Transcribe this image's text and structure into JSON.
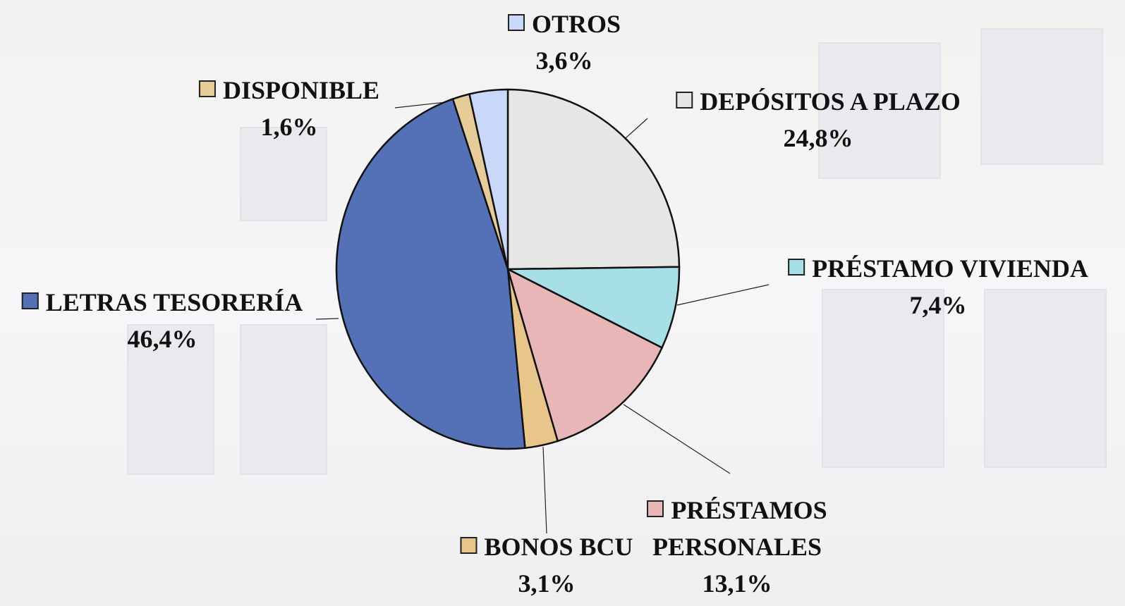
{
  "chart_data": {
    "type": "pie",
    "categories": [
      "DEPÓSITOS A PLAZO",
      "PRÉSTAMO VIVIENDA",
      "PRÉSTAMOS PERSONALES",
      "BONOS BCU",
      "LETRAS TESORERÍA",
      "DISPONIBLE",
      "OTROS"
    ],
    "values": [
      24.8,
      7.4,
      13.1,
      3.1,
      46.4,
      1.6,
      3.6
    ],
    "value_labels": [
      "24,8%",
      "7,4%",
      "13,1%",
      "3,1%",
      "46,4%",
      "1,6%",
      "3,6%"
    ],
    "colors": [
      "#e6e6e4",
      "#a6dfe6",
      "#e8b6b6",
      "#e8c58a",
      "#5470b6",
      "#e6cc98",
      "#c9d8f8"
    ]
  }
}
